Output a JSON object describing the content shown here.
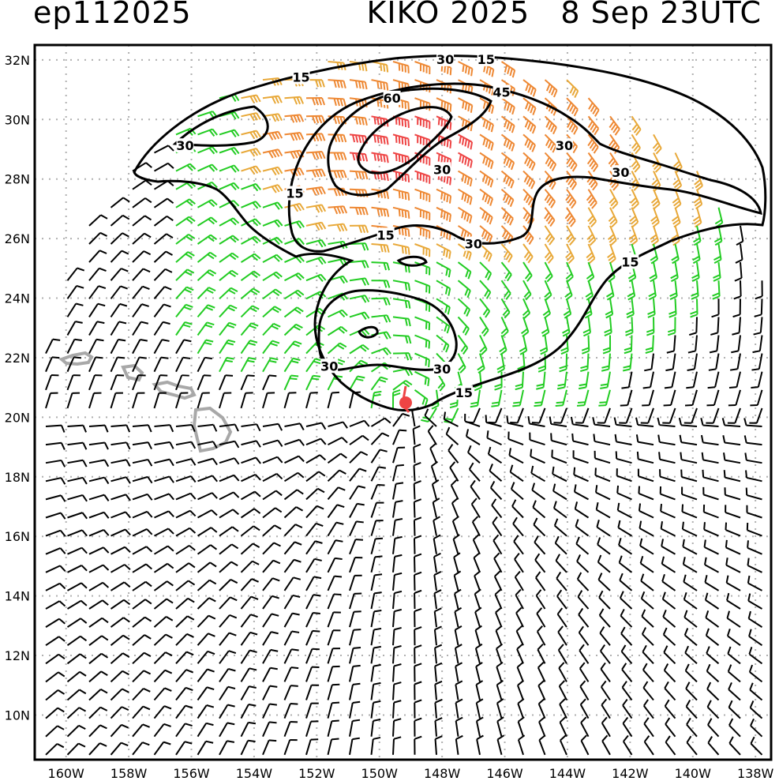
{
  "header": {
    "storm_id": "ep112025",
    "title": "KIKO 2025   8 Sep 23UTC"
  },
  "map": {
    "lon_range_deg_west": [
      161.0,
      137.5
    ],
    "lat_range_deg_north": [
      8.5,
      32.5
    ],
    "grid_spacing_deg": 2
  },
  "axes": {
    "x_ticks": [
      "160W",
      "158W",
      "156W",
      "154W",
      "152W",
      "150W",
      "148W",
      "146W",
      "144W",
      "142W",
      "140W",
      "138W"
    ],
    "y_ticks": [
      "32N",
      "30N",
      "28N",
      "26N",
      "24N",
      "22N",
      "20N",
      "18N",
      "16N",
      "14N",
      "12N",
      "10N"
    ]
  },
  "storm_center": {
    "lat": 20.5,
    "lon_w": 149.0,
    "color": "#ee4444"
  },
  "wind_colors": {
    "calm": "#000000",
    "tropical_storm": "#22cc22",
    "strong": "#e8a838",
    "gale": "#ee8833",
    "hurricane": "#ee4444"
  },
  "contour_labels": [
    {
      "text": "15",
      "lon_w": 152.5,
      "lat": 31.4
    },
    {
      "text": "30",
      "lon_w": 147.9,
      "lat": 32.0
    },
    {
      "text": "15",
      "lon_w": 146.6,
      "lat": 32.0
    },
    {
      "text": "60",
      "lon_w": 149.6,
      "lat": 30.7
    },
    {
      "text": "45",
      "lon_w": 146.1,
      "lat": 30.9
    },
    {
      "text": "30",
      "lon_w": 156.2,
      "lat": 29.1
    },
    {
      "text": "30",
      "lon_w": 144.1,
      "lat": 29.1
    },
    {
      "text": "30",
      "lon_w": 148.0,
      "lat": 28.3
    },
    {
      "text": "30",
      "lon_w": 142.3,
      "lat": 28.2
    },
    {
      "text": "15",
      "lon_w": 152.7,
      "lat": 27.5
    },
    {
      "text": "15",
      "lon_w": 149.8,
      "lat": 26.1
    },
    {
      "text": "30",
      "lon_w": 147.0,
      "lat": 25.8
    },
    {
      "text": "15",
      "lon_w": 142.0,
      "lat": 25.2
    },
    {
      "text": "30",
      "lon_w": 151.6,
      "lat": 21.7
    },
    {
      "text": "30",
      "lon_w": 148.0,
      "lat": 21.6
    },
    {
      "text": "15",
      "lon_w": 147.3,
      "lat": 20.8
    }
  ]
}
